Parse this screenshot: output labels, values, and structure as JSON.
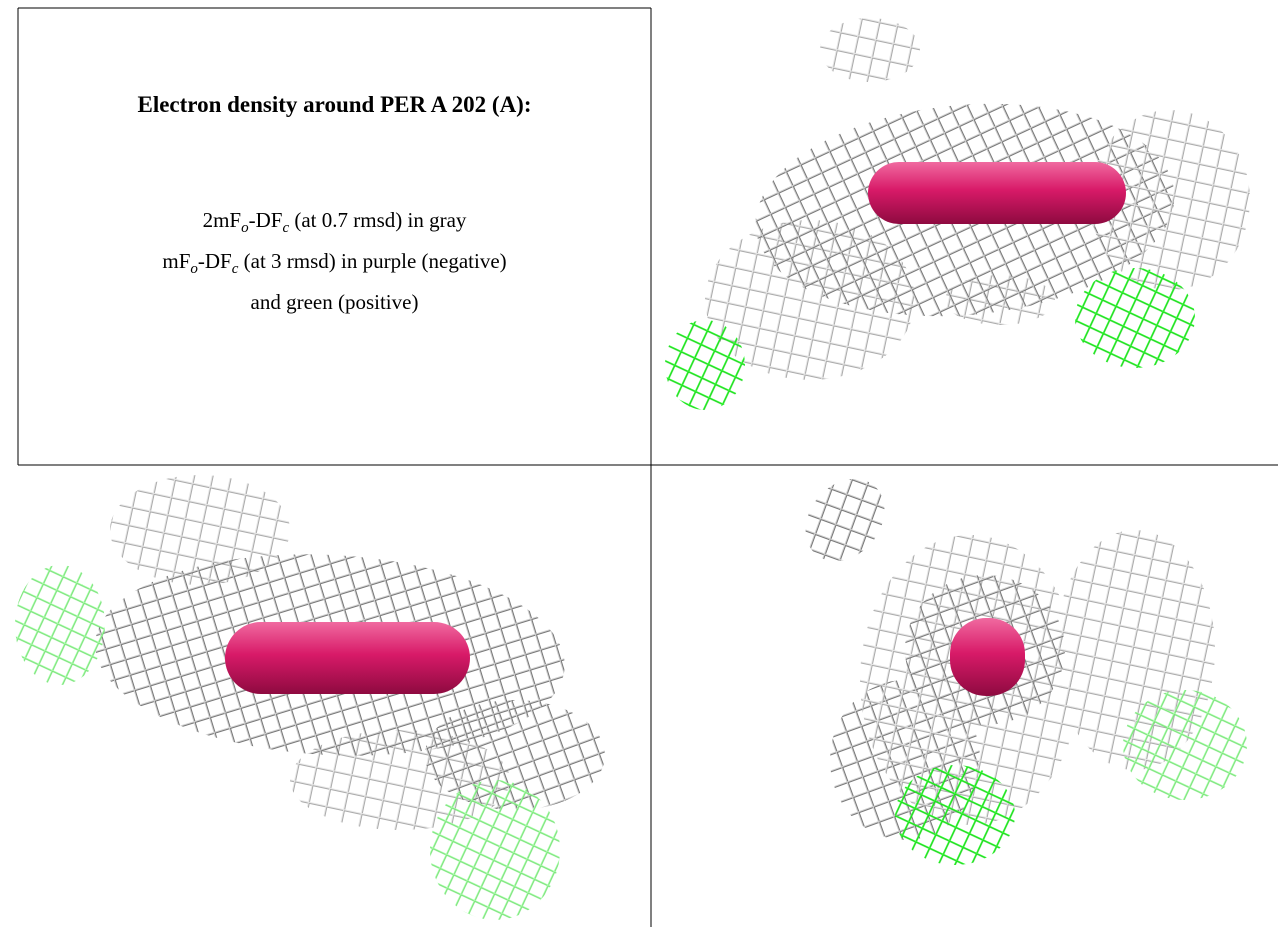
{
  "panel": {
    "title": "Electron density around PER A 202 (A):",
    "lines": [
      [
        "2mF",
        "o",
        "-DF",
        "c",
        " (at 0.7 rmsd) in gray"
      ],
      [
        "mF",
        "o",
        "-DF",
        "c",
        " (at 3 rmsd) in purple (negative)"
      ],
      [
        "and green (positive)"
      ]
    ]
  }
}
